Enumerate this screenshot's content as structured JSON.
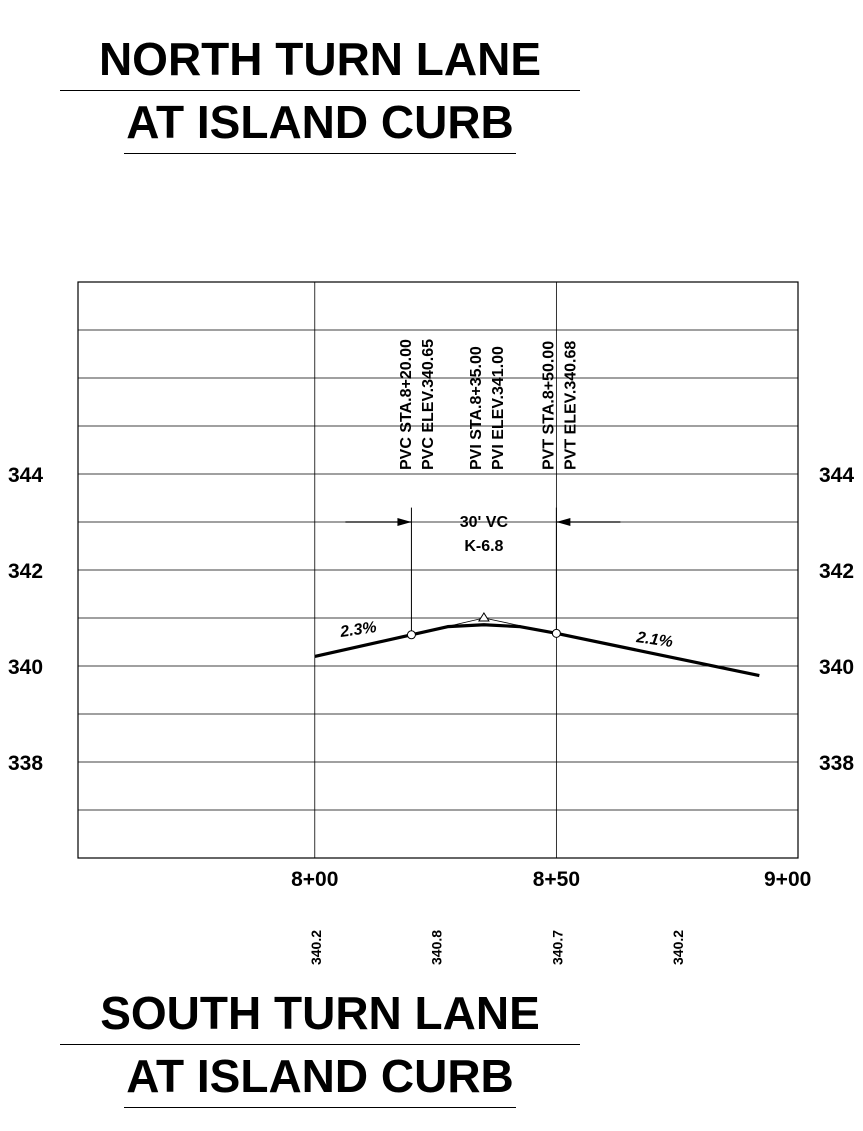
{
  "titles": {
    "top_line1": "NORTH TURN LANE",
    "top_line2": "AT ISLAND CURB",
    "bottom_line1": "SOUTH TURN LANE",
    "bottom_line2": "AT ISLAND CURB"
  },
  "chart_data": {
    "type": "line",
    "title": "",
    "xlabel": "",
    "ylabel": "",
    "x_ticks": [
      {
        "value": 800,
        "label": "8+00"
      },
      {
        "value": 850,
        "label": "8+50"
      },
      {
        "value": 900,
        "label": "9+00"
      }
    ],
    "y_ticks": [
      {
        "value": 338,
        "label": "338"
      },
      {
        "value": 340,
        "label": "340"
      },
      {
        "value": 342,
        "label": "342"
      },
      {
        "value": 344,
        "label": "344"
      }
    ],
    "xlim": [
      751,
      900
    ],
    "ylim": [
      336,
      348
    ],
    "grid": true,
    "series": [
      {
        "points": [
          {
            "x": 800,
            "y": 340.2
          },
          {
            "x": 820,
            "y": 340.65
          },
          {
            "x": 827.5,
            "y": 340.82
          },
          {
            "x": 835,
            "y": 340.86
          },
          {
            "x": 842.5,
            "y": 340.82
          },
          {
            "x": 850,
            "y": 340.68
          },
          {
            "x": 892,
            "y": 339.8
          }
        ]
      }
    ],
    "tangent_points": [
      {
        "x": 820,
        "y": 340.65
      },
      {
        "x": 835,
        "y": 341.0
      },
      {
        "x": 850,
        "y": 340.68
      }
    ],
    "markers": [
      {
        "symbol": "circle",
        "x": 820,
        "y": 340.65
      },
      {
        "symbol": "triangle",
        "x": 835,
        "y": 341.0
      },
      {
        "symbol": "circle",
        "x": 850,
        "y": 340.68
      }
    ],
    "annotations": {
      "vertical_labels": [
        {
          "x": 818.5,
          "text": "PVC STA.8+20.00"
        },
        {
          "x": 823,
          "text": "PVC ELEV.340.65"
        },
        {
          "x": 833,
          "text": "PVI STA.8+35.00"
        },
        {
          "x": 837.5,
          "text": "PVI ELEV.341.00"
        },
        {
          "x": 848,
          "text": "PVT STA.8+50.00"
        },
        {
          "x": 852.5,
          "text": "PVT ELEV.340.68"
        }
      ],
      "curve_label_1": "30' VC",
      "curve_label_2": "K-6.8",
      "grade_left": "2.3%",
      "grade_right": "2.1%"
    },
    "elevations": [
      {
        "x": 800,
        "text": "340.2"
      },
      {
        "x": 825,
        "text": "340.8"
      },
      {
        "x": 850,
        "text": "340.7"
      },
      {
        "x": 875,
        "text": "340.2"
      }
    ]
  }
}
